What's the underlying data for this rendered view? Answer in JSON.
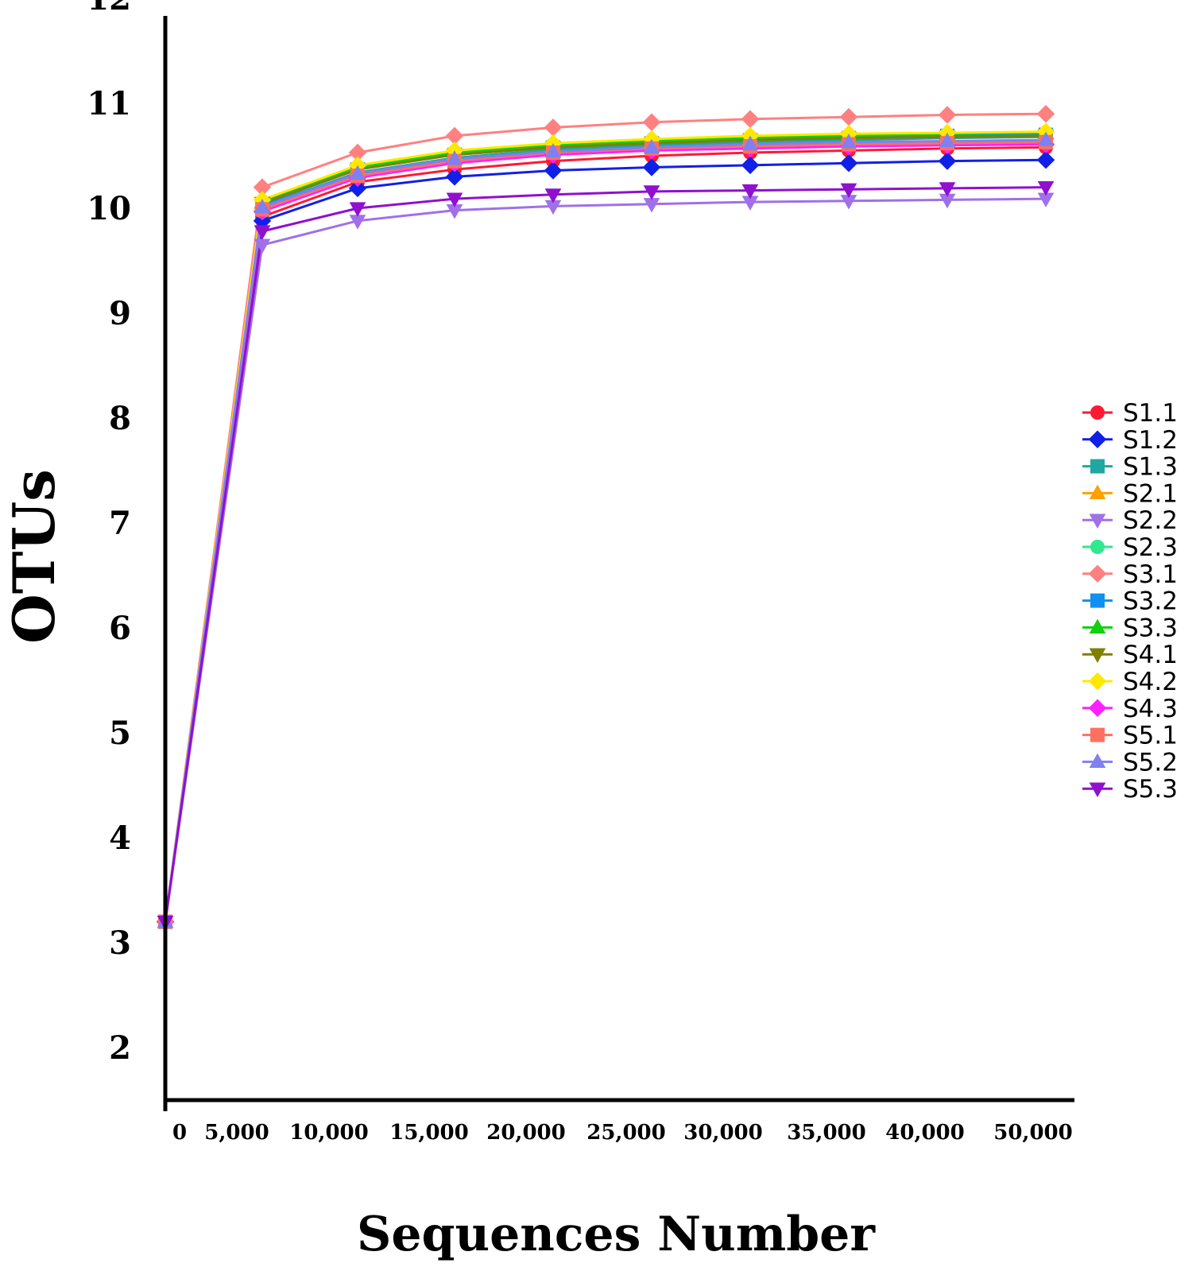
{
  "chart_data": {
    "type": "line",
    "xlabel": "Sequences Number",
    "ylabel": "OTUs",
    "ylim": [
      2,
      12
    ],
    "yticks": [
      "2",
      "3",
      "4",
      "5",
      "6",
      "7",
      "8",
      "9",
      "10",
      "11",
      "12"
    ],
    "xticks": [
      "0",
      "5,000",
      "10,000",
      "15,000",
      "20,000",
      "25,000",
      "30,000",
      "35,000",
      "40,000",
      "50,000"
    ],
    "grid": false,
    "legend_position": "right",
    "series": [
      {
        "name": "S1.1",
        "color": "#ff1a33",
        "marker": "circle",
        "values": [
          3.2,
          9.92,
          10.25,
          10.37,
          10.45,
          10.5,
          10.53,
          10.55,
          10.57,
          10.58
        ]
      },
      {
        "name": "S1.2",
        "color": "#1020e8",
        "marker": "diamond",
        "values": [
          3.2,
          9.88,
          10.19,
          10.3,
          10.36,
          10.39,
          10.41,
          10.43,
          10.45,
          10.46
        ]
      },
      {
        "name": "S1.3",
        "color": "#20a8a0",
        "marker": "square",
        "values": [
          3.2,
          10.02,
          10.34,
          10.48,
          10.56,
          10.6,
          10.63,
          10.65,
          10.67,
          10.68
        ]
      },
      {
        "name": "S2.1",
        "color": "#ffa000",
        "marker": "triangle-up",
        "values": [
          3.2,
          10.05,
          10.38,
          10.52,
          10.59,
          10.63,
          10.66,
          10.68,
          10.7,
          10.71
        ]
      },
      {
        "name": "S2.2",
        "color": "#a070e8",
        "marker": "triangle-down",
        "values": [
          3.2,
          9.65,
          9.88,
          9.98,
          10.02,
          10.04,
          10.06,
          10.07,
          10.08,
          10.09
        ]
      },
      {
        "name": "S2.3",
        "color": "#30e890",
        "marker": "circle",
        "values": [
          3.2,
          9.97,
          10.3,
          10.44,
          10.52,
          10.56,
          10.58,
          10.6,
          10.61,
          10.62
        ]
      },
      {
        "name": "S3.1",
        "color": "#ff8080",
        "marker": "diamond",
        "values": [
          3.2,
          10.2,
          10.53,
          10.69,
          10.77,
          10.82,
          10.85,
          10.87,
          10.89,
          10.9
        ]
      },
      {
        "name": "S3.2",
        "color": "#1090f0",
        "marker": "square",
        "values": [
          3.2,
          10.04,
          10.37,
          10.51,
          10.58,
          10.62,
          10.65,
          10.67,
          10.69,
          10.7
        ]
      },
      {
        "name": "S3.3",
        "color": "#10d010",
        "marker": "triangle-up",
        "values": [
          3.2,
          10.06,
          10.39,
          10.53,
          10.6,
          10.64,
          10.67,
          10.69,
          10.71,
          10.72
        ]
      },
      {
        "name": "S4.1",
        "color": "#808000",
        "marker": "triangle-down",
        "values": [
          3.2,
          10.05,
          10.37,
          10.51,
          10.58,
          10.62,
          10.65,
          10.67,
          10.68,
          10.69
        ]
      },
      {
        "name": "S4.2",
        "color": "#ffe800",
        "marker": "diamond",
        "values": [
          3.2,
          10.08,
          10.41,
          10.55,
          10.62,
          10.66,
          10.69,
          10.71,
          10.72,
          10.73
        ]
      },
      {
        "name": "S4.3",
        "color": "#ff20ff",
        "marker": "diamond",
        "values": [
          3.2,
          9.97,
          10.29,
          10.43,
          10.51,
          10.55,
          10.57,
          10.59,
          10.6,
          10.61
        ]
      },
      {
        "name": "S5.1",
        "color": "#ff7060",
        "marker": "square",
        "values": [
          3.2,
          9.99,
          10.31,
          10.45,
          10.53,
          10.57,
          10.59,
          10.61,
          10.62,
          10.63
        ]
      },
      {
        "name": "S5.2",
        "color": "#8080f0",
        "marker": "triangle-up",
        "values": [
          3.2,
          10.01,
          10.33,
          10.47,
          10.54,
          10.58,
          10.61,
          10.63,
          10.64,
          10.65
        ]
      },
      {
        "name": "S5.3",
        "color": "#9010d0",
        "marker": "triangle-down",
        "values": [
          3.2,
          9.78,
          10.0,
          10.09,
          10.13,
          10.16,
          10.17,
          10.18,
          10.19,
          10.2
        ]
      }
    ]
  }
}
